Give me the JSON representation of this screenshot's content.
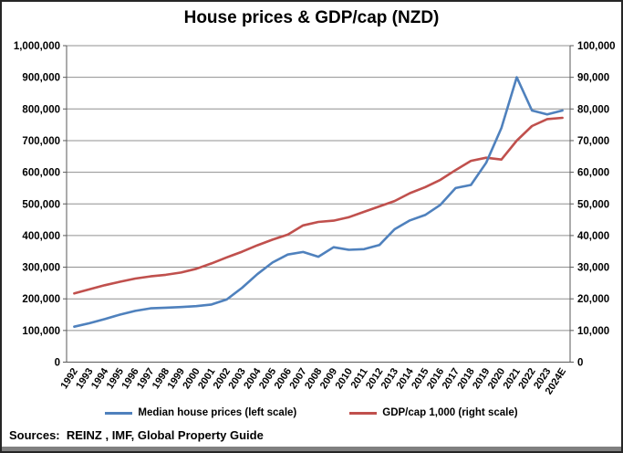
{
  "title": "House prices & GDP/cap (NZD)",
  "source": "Sources:  REINZ , IMF, Global Property Guide",
  "legend": {
    "house_label": "Median house prices (left scale)",
    "gdp_label": "GDP/cap 1,000 (right scale)"
  },
  "colors": {
    "house_line": "#4F81BD",
    "gdp_line": "#C0504D",
    "gridline": "#909090",
    "axis": "#595959",
    "text": "#000000",
    "border": "#262626",
    "bottom_strip": "#808080"
  },
  "chart_data": {
    "type": "line",
    "title": "House prices & GDP/cap (NZD)",
    "categories": [
      "1992",
      "1993",
      "1994",
      "1995",
      "1996",
      "1997",
      "1998",
      "1999",
      "2000",
      "2001",
      "2002",
      "2003",
      "2004",
      "2005",
      "2006",
      "2007",
      "2008",
      "2009",
      "2010",
      "2011",
      "2012",
      "2013",
      "2014",
      "2015",
      "2016",
      "2017",
      "2018",
      "2019",
      "2020",
      "2021",
      "2022",
      "2023",
      "2024E"
    ],
    "series": [
      {
        "name": "Median house prices (left scale)",
        "axis": "left",
        "color": "#4F81BD",
        "values": [
          112000,
          123000,
          136000,
          150000,
          162000,
          170000,
          172000,
          174000,
          177000,
          182000,
          198000,
          235000,
          278000,
          315000,
          340000,
          348000,
          333000,
          363000,
          355000,
          357000,
          370000,
          420000,
          448000,
          465000,
          497000,
          550000,
          560000,
          630000,
          740000,
          900000,
          795000,
          783000,
          795000
        ]
      },
      {
        "name": "GDP/cap 1,000 (right scale)",
        "axis": "right",
        "color": "#C0504D",
        "values": [
          21700,
          23000,
          24300,
          25400,
          26400,
          27100,
          27600,
          28300,
          29500,
          31200,
          33100,
          34900,
          36900,
          38700,
          40300,
          43200,
          44300,
          44700,
          45800,
          47500,
          49200,
          50900,
          53400,
          55300,
          57600,
          60700,
          63600,
          64600,
          64000,
          70000,
          74600,
          76800,
          77200
        ]
      }
    ],
    "left_axis": {
      "min": 0,
      "max": 1000000,
      "step": 100000,
      "tick_labels": [
        "0",
        "100,000",
        "200,000",
        "300,000",
        "400,000",
        "500,000",
        "600,000",
        "700,000",
        "800,000",
        "900,000",
        "1,000,000"
      ]
    },
    "right_axis": {
      "min": 0,
      "max": 100000,
      "step": 10000,
      "tick_labels": [
        "0",
        "10,000",
        "20,000",
        "30,000",
        "40,000",
        "50,000",
        "60,000",
        "70,000",
        "80,000",
        "90,000",
        "100,000"
      ]
    },
    "grid": true,
    "legend_position": "bottom"
  }
}
